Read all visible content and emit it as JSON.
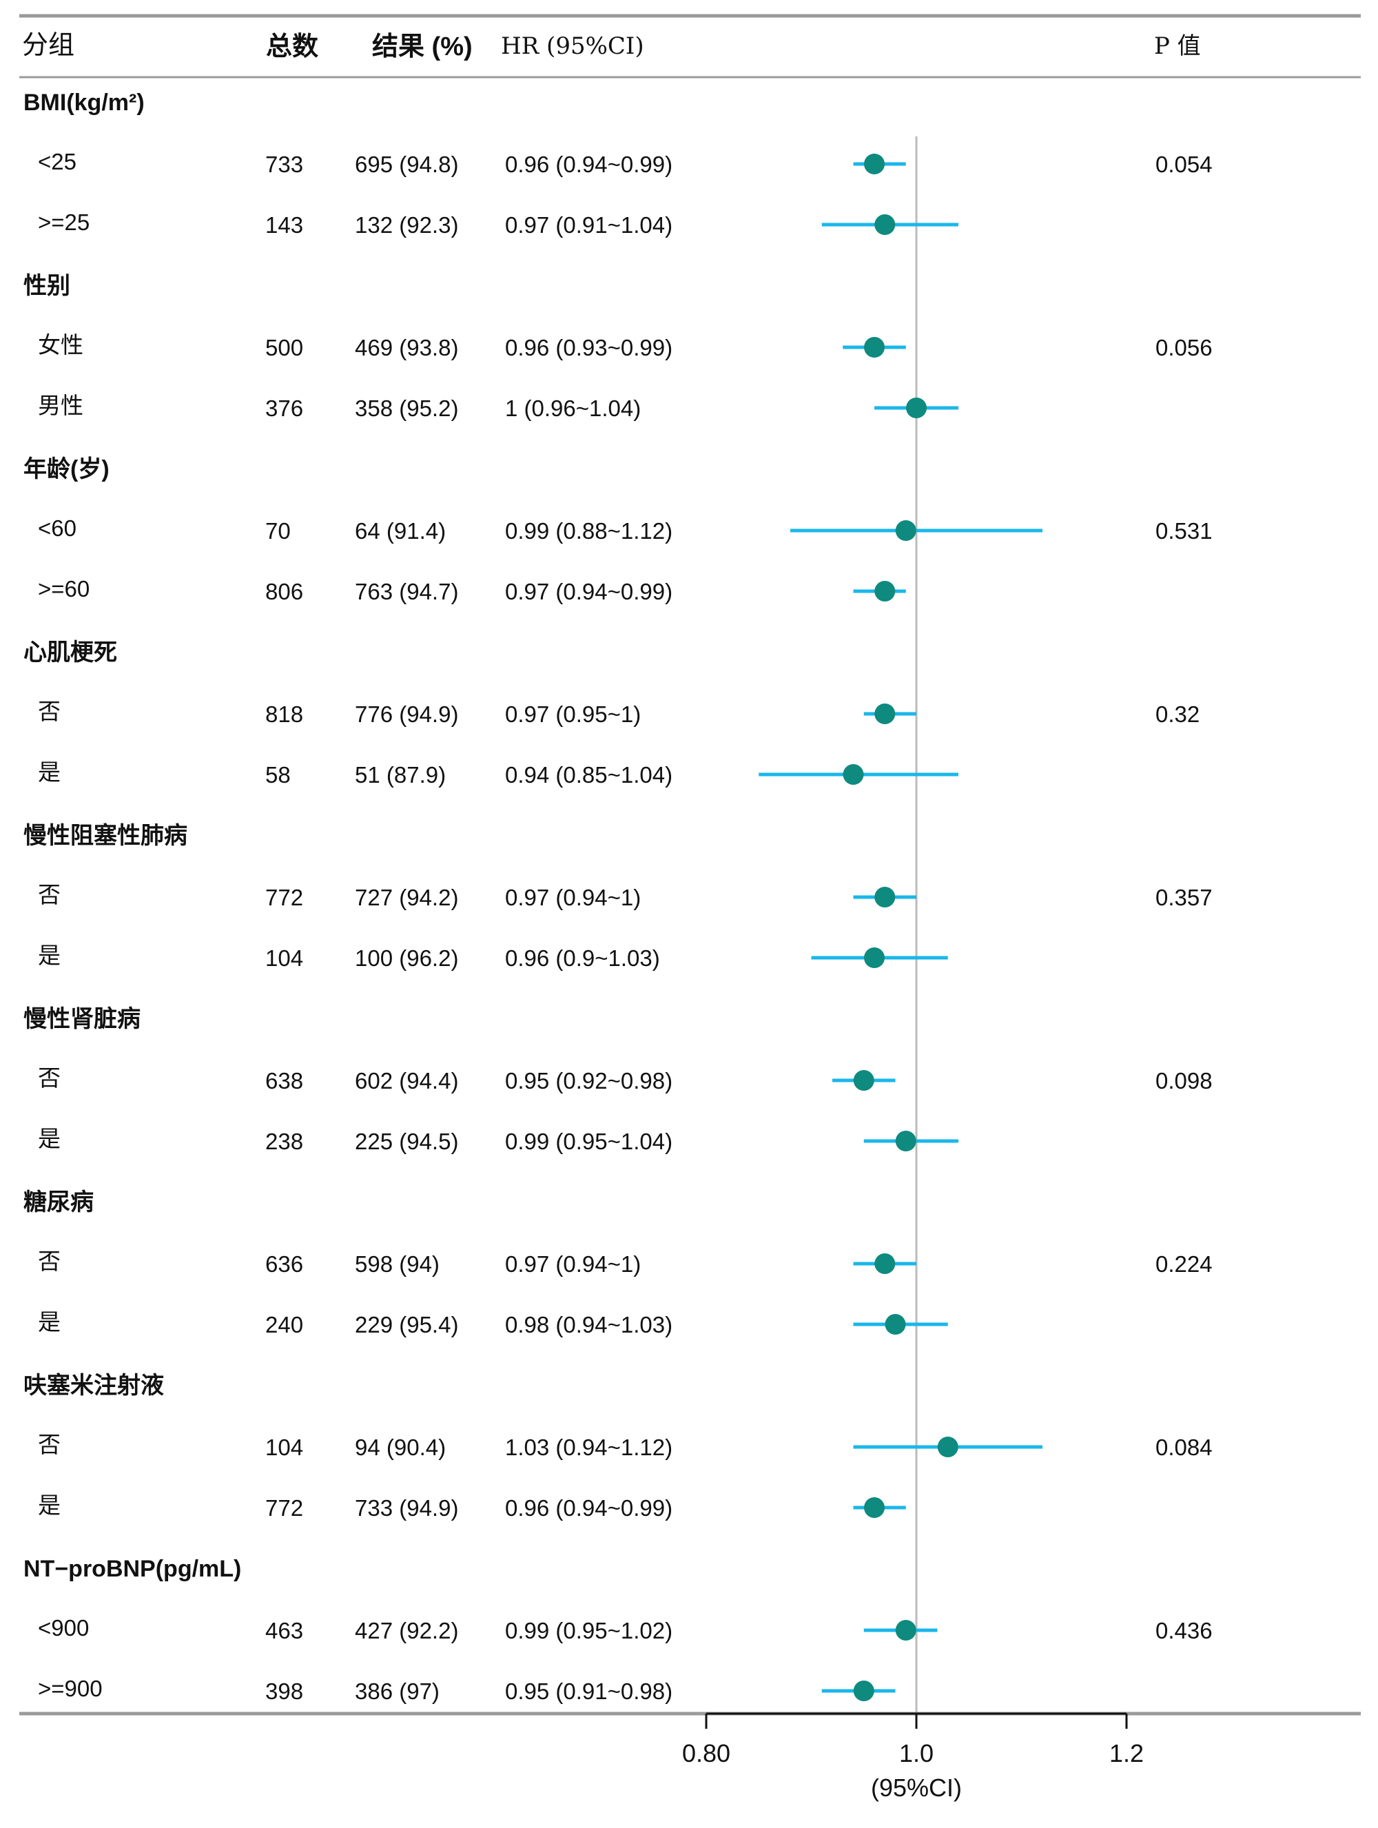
{
  "header": {
    "group": "分组",
    "total": "总数",
    "result": "结果 (%)",
    "hr": "HR (95%CI)",
    "p": "P 值"
  },
  "axis": {
    "ticks": [
      0.8,
      1.0,
      1.2
    ],
    "tick_labels": [
      "0.80",
      "1.0",
      "1.2"
    ],
    "xlabel": "(95%CI)",
    "ref_line": 1.0
  },
  "colors": {
    "ci_line": "#1ab7ea",
    "point": "#0e8a7f",
    "rule": "#9a9a9a",
    "ref_line": "#bbbbbb"
  },
  "groups": [
    {
      "name": "BMI(kg/m²)",
      "rows": [
        {
          "label": "<25",
          "total": "733",
          "result": "695 (94.8)",
          "hr_text": "0.96 (0.94~0.99)",
          "p": "0.054",
          "hr": 0.96,
          "lo": 0.94,
          "hi": 0.99
        },
        {
          "label": ">=25",
          "total": "143",
          "result": "132 (92.3)",
          "hr_text": "0.97 (0.91~1.04)",
          "p": "",
          "hr": 0.97,
          "lo": 0.91,
          "hi": 1.04
        }
      ]
    },
    {
      "name": "性别",
      "rows": [
        {
          "label": "女性",
          "total": "500",
          "result": "469 (93.8)",
          "hr_text": "0.96 (0.93~0.99)",
          "p": "0.056",
          "hr": 0.96,
          "lo": 0.93,
          "hi": 0.99
        },
        {
          "label": "男性",
          "total": "376",
          "result": "358 (95.2)",
          "hr_text": "1 (0.96~1.04)",
          "p": "",
          "hr": 1.0,
          "lo": 0.96,
          "hi": 1.04
        }
      ]
    },
    {
      "name": "年龄(岁)",
      "rows": [
        {
          "label": "<60",
          "total": "70",
          "result": "64 (91.4)",
          "hr_text": "0.99 (0.88~1.12)",
          "p": "0.531",
          "hr": 0.99,
          "lo": 0.88,
          "hi": 1.12
        },
        {
          "label": ">=60",
          "total": "806",
          "result": "763 (94.7)",
          "hr_text": "0.97 (0.94~0.99)",
          "p": "",
          "hr": 0.97,
          "lo": 0.94,
          "hi": 0.99
        }
      ]
    },
    {
      "name": "心肌梗死",
      "rows": [
        {
          "label": "否",
          "total": "818",
          "result": "776 (94.9)",
          "hr_text": "0.97 (0.95~1)",
          "p": "0.32",
          "hr": 0.97,
          "lo": 0.95,
          "hi": 1.0
        },
        {
          "label": "是",
          "total": "58",
          "result": "51 (87.9)",
          "hr_text": "0.94 (0.85~1.04)",
          "p": "",
          "hr": 0.94,
          "lo": 0.85,
          "hi": 1.04
        }
      ]
    },
    {
      "name": "慢性阻塞性肺病",
      "rows": [
        {
          "label": "否",
          "total": "772",
          "result": "727 (94.2)",
          "hr_text": "0.97 (0.94~1)",
          "p": "0.357",
          "hr": 0.97,
          "lo": 0.94,
          "hi": 1.0
        },
        {
          "label": "是",
          "total": "104",
          "result": "100 (96.2)",
          "hr_text": "0.96 (0.9~1.03)",
          "p": "",
          "hr": 0.96,
          "lo": 0.9,
          "hi": 1.03
        }
      ]
    },
    {
      "name": "慢性肾脏病",
      "rows": [
        {
          "label": "否",
          "total": "638",
          "result": "602 (94.4)",
          "hr_text": "0.95 (0.92~0.98)",
          "p": "0.098",
          "hr": 0.95,
          "lo": 0.92,
          "hi": 0.98
        },
        {
          "label": "是",
          "total": "238",
          "result": "225 (94.5)",
          "hr_text": "0.99 (0.95~1.04)",
          "p": "",
          "hr": 0.99,
          "lo": 0.95,
          "hi": 1.04
        }
      ]
    },
    {
      "name": "糖尿病",
      "rows": [
        {
          "label": "否",
          "total": "636",
          "result": "598 (94)",
          "hr_text": "0.97 (0.94~1)",
          "p": "0.224",
          "hr": 0.97,
          "lo": 0.94,
          "hi": 1.0
        },
        {
          "label": "是",
          "total": "240",
          "result": "229 (95.4)",
          "hr_text": "0.98 (0.94~1.03)",
          "p": "",
          "hr": 0.98,
          "lo": 0.94,
          "hi": 1.03
        }
      ]
    },
    {
      "name": "呋塞米注射液",
      "rows": [
        {
          "label": "否",
          "total": "104",
          "result": "94 (90.4)",
          "hr_text": "1.03 (0.94~1.12)",
          "p": "0.084",
          "hr": 1.03,
          "lo": 0.94,
          "hi": 1.12
        },
        {
          "label": "是",
          "total": "772",
          "result": "733 (94.9)",
          "hr_text": "0.96 (0.94~0.99)",
          "p": "",
          "hr": 0.96,
          "lo": 0.94,
          "hi": 0.99
        }
      ]
    },
    {
      "name": "NT−proBNP(pg/mL)",
      "rows": [
        {
          "label": "<900",
          "total": "463",
          "result": "427 (92.2)",
          "hr_text": "0.99 (0.95~1.02)",
          "p": "0.436",
          "hr": 0.99,
          "lo": 0.95,
          "hi": 1.02
        },
        {
          "label": ">=900",
          "total": "398",
          "result": "386 (97)",
          "hr_text": "0.95 (0.91~0.98)",
          "p": "",
          "hr": 0.95,
          "lo": 0.91,
          "hi": 0.98
        }
      ]
    }
  ],
  "chart_data": {
    "type": "forest",
    "xlabel": "(95%CI)",
    "xticks": [
      0.8,
      1.0,
      1.2
    ],
    "reference_line": 1.0,
    "series": [
      {
        "group": "BMI(kg/m²)",
        "subgroup": "<25",
        "hr": 0.96,
        "lo": 0.94,
        "hi": 0.99,
        "p": 0.054
      },
      {
        "group": "BMI(kg/m²)",
        "subgroup": ">=25",
        "hr": 0.97,
        "lo": 0.91,
        "hi": 1.04
      },
      {
        "group": "性别",
        "subgroup": "女性",
        "hr": 0.96,
        "lo": 0.93,
        "hi": 0.99,
        "p": 0.056
      },
      {
        "group": "性别",
        "subgroup": "男性",
        "hr": 1.0,
        "lo": 0.96,
        "hi": 1.04
      },
      {
        "group": "年龄(岁)",
        "subgroup": "<60",
        "hr": 0.99,
        "lo": 0.88,
        "hi": 1.12,
        "p": 0.531
      },
      {
        "group": "年龄(岁)",
        "subgroup": ">=60",
        "hr": 0.97,
        "lo": 0.94,
        "hi": 0.99
      },
      {
        "group": "心肌梗死",
        "subgroup": "否",
        "hr": 0.97,
        "lo": 0.95,
        "hi": 1.0,
        "p": 0.32
      },
      {
        "group": "心肌梗死",
        "subgroup": "是",
        "hr": 0.94,
        "lo": 0.85,
        "hi": 1.04
      },
      {
        "group": "慢性阻塞性肺病",
        "subgroup": "否",
        "hr": 0.97,
        "lo": 0.94,
        "hi": 1.0,
        "p": 0.357
      },
      {
        "group": "慢性阻塞性肺病",
        "subgroup": "是",
        "hr": 0.96,
        "lo": 0.9,
        "hi": 1.03
      },
      {
        "group": "慢性肾脏病",
        "subgroup": "否",
        "hr": 0.95,
        "lo": 0.92,
        "hi": 0.98,
        "p": 0.098
      },
      {
        "group": "慢性肾脏病",
        "subgroup": "是",
        "hr": 0.99,
        "lo": 0.95,
        "hi": 1.04
      },
      {
        "group": "糖尿病",
        "subgroup": "否",
        "hr": 0.97,
        "lo": 0.94,
        "hi": 1.0,
        "p": 0.224
      },
      {
        "group": "糖尿病",
        "subgroup": "是",
        "hr": 0.98,
        "lo": 0.94,
        "hi": 1.03
      },
      {
        "group": "呋塞米注射液",
        "subgroup": "否",
        "hr": 1.03,
        "lo": 0.94,
        "hi": 1.12,
        "p": 0.084
      },
      {
        "group": "呋塞米注射液",
        "subgroup": "是",
        "hr": 0.96,
        "lo": 0.94,
        "hi": 0.99
      },
      {
        "group": "NT−proBNP(pg/mL)",
        "subgroup": "<900",
        "hr": 0.99,
        "lo": 0.95,
        "hi": 1.02,
        "p": 0.436
      },
      {
        "group": "NT−proBNP(pg/mL)",
        "subgroup": ">=900",
        "hr": 0.95,
        "lo": 0.91,
        "hi": 0.98
      }
    ]
  }
}
